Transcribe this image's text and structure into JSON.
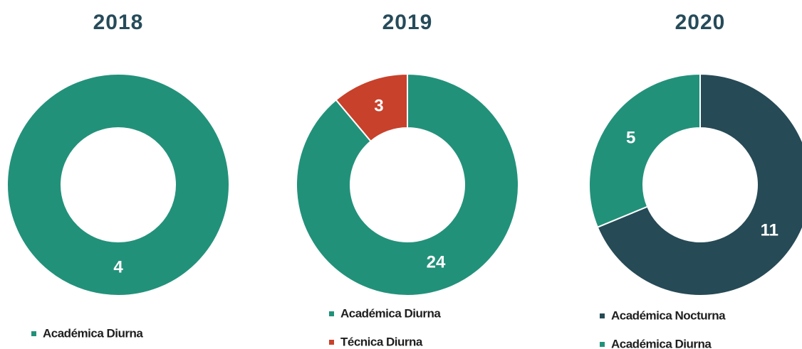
{
  "chart_data": [
    {
      "type": "donut",
      "title": "2018",
      "categories": [
        "Académica Diurna"
      ],
      "values": [
        4
      ],
      "colors": [
        "#22917a"
      ],
      "legend": "bottom"
    },
    {
      "type": "donut",
      "title": "2019",
      "categories": [
        "Académica Diurna",
        "Técnica Diurna"
      ],
      "values": [
        24,
        3
      ],
      "colors": [
        "#22917a",
        "#c8412b"
      ],
      "legend": "bottom"
    },
    {
      "type": "donut",
      "title": "2020",
      "categories": [
        "Académica Nocturna",
        "Académica Diurna"
      ],
      "values": [
        11,
        5
      ],
      "colors": [
        "#264a56",
        "#22917a"
      ],
      "legend": "bottom"
    }
  ]
}
